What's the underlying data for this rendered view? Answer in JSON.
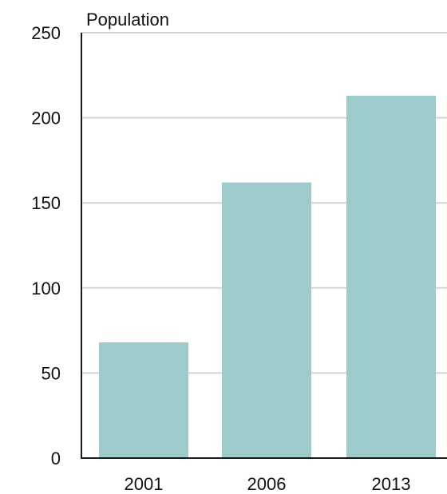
{
  "chart_data": {
    "type": "bar",
    "title": "",
    "xlabel": "",
    "ylabel": "Population",
    "categories": [
      "2001",
      "2006",
      "2013"
    ],
    "values": [
      68,
      162,
      213
    ],
    "ylim": [
      0,
      250
    ],
    "yticks": [
      "0",
      "50",
      "100",
      "150",
      "200",
      "250"
    ],
    "grid": true,
    "legend": "none"
  },
  "colors": {
    "bar": "#9dcbcc",
    "grid": "#d3d3d3",
    "axis": "#1a1a1a",
    "text": "#111111"
  }
}
